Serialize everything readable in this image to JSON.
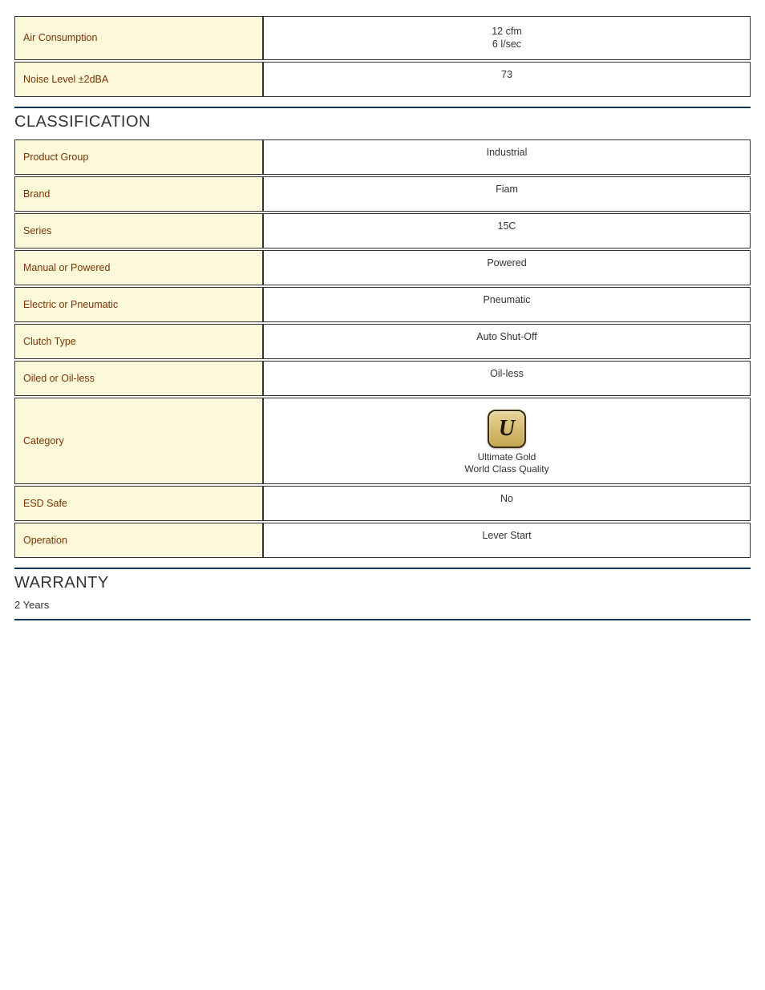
{
  "colors": {
    "label_bg": "#fbf9d9",
    "label_text": "#7a3406",
    "rule": "#13355c",
    "border": "#333333",
    "badge_gradient_top": "#e8d59a",
    "badge_gradient_mid": "#d6bd74",
    "badge_gradient_bot": "#c4a850",
    "badge_border": "#3b2b0a"
  },
  "top_table": {
    "rows": [
      {
        "label": "Air Consumption",
        "value_lines": [
          "12 cfm",
          "6 l/sec"
        ]
      },
      {
        "label": "Noise Level ±2dBA",
        "value_lines": [
          "73"
        ]
      }
    ]
  },
  "classification": {
    "title": "CLASSIFICATION",
    "rows": [
      {
        "label": "Product Group",
        "value": "Industrial"
      },
      {
        "label": "Brand",
        "value": "Fiam"
      },
      {
        "label": "Series",
        "value": "15C"
      },
      {
        "label": "Manual or Powered",
        "value": "Powered"
      },
      {
        "label": "Electric or Pneumatic",
        "value": "Pneumatic"
      },
      {
        "label": "Clutch Type",
        "value": "Auto Shut-Off"
      },
      {
        "label": "Oiled or Oil-less",
        "value": "Oil-less"
      }
    ],
    "category_row": {
      "label": "Category",
      "badge_letter": "U",
      "caption_line1": "Ultimate Gold",
      "caption_line2": "World Class Quality"
    },
    "rows_after": [
      {
        "label": "ESD Safe",
        "value": "No"
      },
      {
        "label": "Operation",
        "value": "Lever Start"
      }
    ]
  },
  "warranty": {
    "title": "WARRANTY",
    "text": "2 Years"
  }
}
